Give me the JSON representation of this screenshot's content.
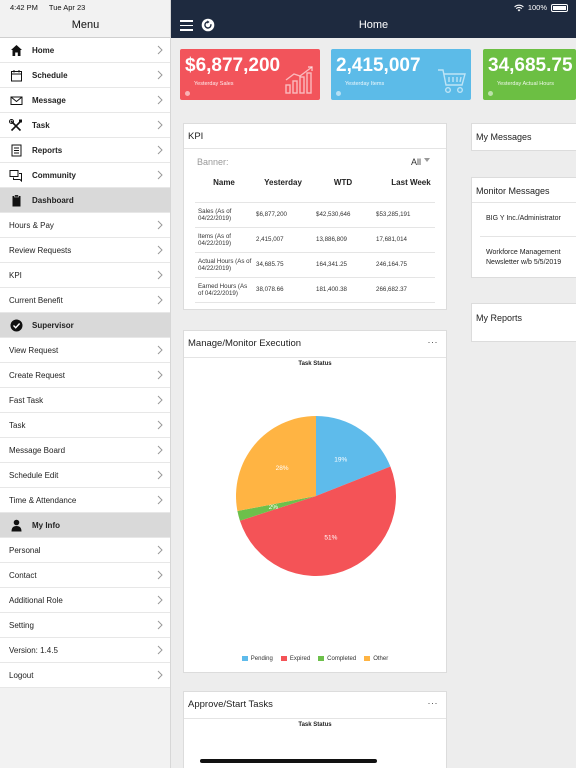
{
  "status": {
    "time": "4:42 PM",
    "date": "Tue Apr 23",
    "battery": "100%"
  },
  "sidebar": {
    "title": "Menu",
    "items": [
      {
        "label": "Home",
        "icon": "home-icon",
        "type": "nav"
      },
      {
        "label": "Schedule",
        "icon": "calendar-icon",
        "type": "nav"
      },
      {
        "label": "Message",
        "icon": "mail-icon",
        "type": "nav"
      },
      {
        "label": "Task",
        "icon": "tools-icon",
        "type": "nav"
      },
      {
        "label": "Reports",
        "icon": "report-icon",
        "type": "nav"
      },
      {
        "label": "Community",
        "icon": "chat-icon",
        "type": "nav"
      },
      {
        "label": "Dashboard",
        "icon": "clipboard-icon",
        "type": "header"
      },
      {
        "label": "Hours & Pay",
        "type": "sub"
      },
      {
        "label": "Review Requests",
        "type": "sub"
      },
      {
        "label": "KPI",
        "type": "sub"
      },
      {
        "label": "Current Benefit",
        "type": "sub"
      },
      {
        "label": "Supervisor",
        "icon": "check-circle-icon",
        "type": "header"
      },
      {
        "label": "View Request",
        "type": "sub"
      },
      {
        "label": "Create Request",
        "type": "sub"
      },
      {
        "label": "Fast Task",
        "type": "sub"
      },
      {
        "label": "Task",
        "type": "sub"
      },
      {
        "label": "Message Board",
        "type": "sub"
      },
      {
        "label": "Schedule Edit",
        "type": "sub"
      },
      {
        "label": "Time & Attendance",
        "type": "sub"
      },
      {
        "label": "My Info",
        "icon": "person-icon",
        "type": "header"
      },
      {
        "label": "Personal",
        "type": "sub"
      },
      {
        "label": "Contact",
        "type": "sub"
      },
      {
        "label": "Additional Role",
        "type": "sub"
      },
      {
        "label": "Setting",
        "type": "sub"
      },
      {
        "label": "Version: 1.4.5",
        "type": "sub"
      },
      {
        "label": "Logout",
        "type": "sub"
      }
    ]
  },
  "header": {
    "title": "Home"
  },
  "tiles": [
    {
      "value": "$6,877,200",
      "label": "Yesterday Sales",
      "color": "#f2545b",
      "icon": "bar-chart-icon"
    },
    {
      "value": "2,415,007",
      "label": "Yesterday Items",
      "color": "#5cbbe8",
      "icon": "cart-icon"
    },
    {
      "value": "34,685.75",
      "label": "Yesterday Actual Hours",
      "color": "#6cbf43",
      "icon": "clock-icon"
    }
  ],
  "kpi": {
    "title": "KPI",
    "banner_label": "Banner:",
    "banner_value": "All",
    "columns": [
      "Name",
      "Yesterday",
      "WTD",
      "Last Week"
    ],
    "rows": [
      [
        "Sales (As of 04/22/2019)",
        "$6,877,200",
        "$42,530,646",
        "$53,285,191"
      ],
      [
        "Items (As of 04/22/2019)",
        "2,415,007",
        "13,886,809",
        "17,681,014"
      ],
      [
        "Actual Hours (As of 04/22/2019)",
        "34,685.75",
        "164,341.25",
        "246,164.75"
      ],
      [
        "Earned Hours (As of 04/22/2019)",
        "38,078.66",
        "181,400.38",
        "266,682.37"
      ]
    ]
  },
  "my_messages": {
    "title": "My Messages"
  },
  "monitor_messages": {
    "title": "Monitor Messages",
    "items": [
      "BIG Y Inc./Administrator",
      "Workforce Management Newsletter w/b 5/5/2019"
    ]
  },
  "my_reports": {
    "title": "My Reports"
  },
  "manage_card": {
    "title": "Manage/Monitor Execution",
    "more": "···",
    "subtitle": "Task Status"
  },
  "approve_card": {
    "title": "Approve/Start Tasks",
    "more": "···",
    "subtitle": "Task Status"
  },
  "chart_data": {
    "type": "pie",
    "title": "Task Status",
    "categories": [
      "Pending",
      "Expired",
      "Completed",
      "Other"
    ],
    "values": [
      19,
      51,
      2,
      28
    ],
    "labels": [
      "19%",
      "51%",
      "2%",
      "28%"
    ],
    "colors": [
      "#5ebbeb",
      "#f45357",
      "#6dc04b",
      "#ffb443"
    ],
    "legend": "bottom"
  }
}
